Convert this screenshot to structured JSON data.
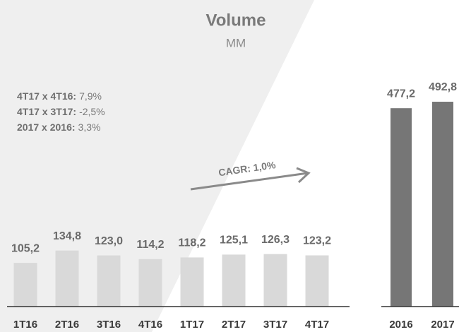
{
  "chart_data": {
    "type": "bar",
    "title": "Volume",
    "subtitle": "MM",
    "categories": [
      "1T16",
      "2T16",
      "3T16",
      "4T16",
      "1T17",
      "2T17",
      "3T17",
      "4T17",
      "2016",
      "2017"
    ],
    "values": [
      105.2,
      134.8,
      123.0,
      114.2,
      118.2,
      125.1,
      126.3,
      123.2,
      477.2,
      492.8
    ],
    "value_labels": [
      "105,2",
      "134,8",
      "123,0",
      "114,2",
      "118,2",
      "125,1",
      "126,3",
      "123,2",
      "477,2",
      "492,8"
    ],
    "colors": [
      "#d9d9d9",
      "#d9d9d9",
      "#d9d9d9",
      "#d9d9d9",
      "#d9d9d9",
      "#d9d9d9",
      "#d9d9d9",
      "#d9d9d9",
      "#767676",
      "#767676"
    ],
    "notes": [
      {
        "label": "4T17 x 4T16:",
        "value": "7,9%"
      },
      {
        "label": "4T17 x 3T17:",
        "value": "-2,5%"
      },
      {
        "label": "2017 x 2016:",
        "value": "3,3%"
      }
    ],
    "arrow_annotation": "CAGR: 1,0%"
  }
}
